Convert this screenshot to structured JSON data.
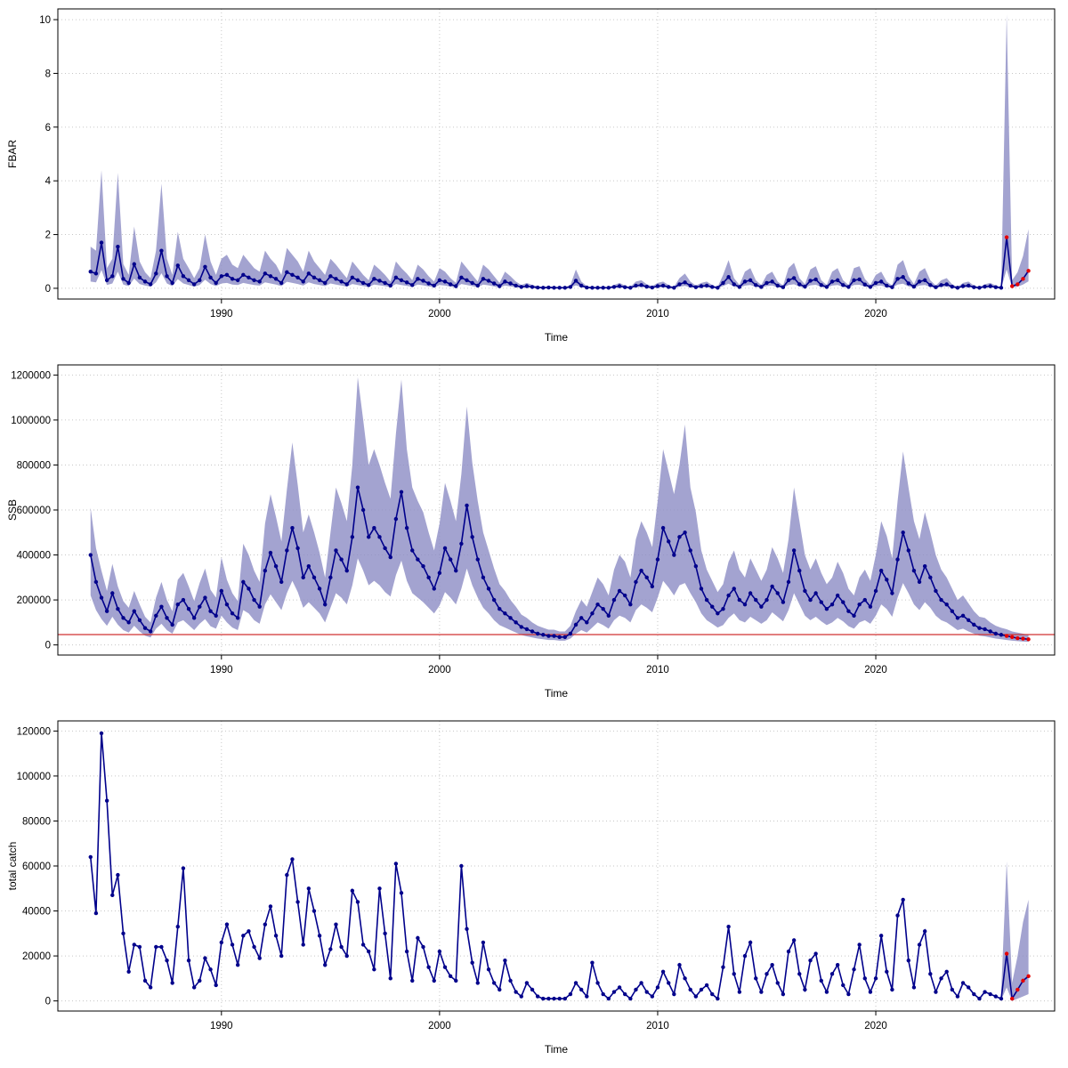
{
  "figure": {
    "background": "#ffffff",
    "x_label": "Time",
    "x_ticks": [
      1990,
      2000,
      2010,
      2020
    ],
    "x_range": [
      1982.5,
      2028.2
    ],
    "series_color": "#00008b",
    "band_color": "#8c8cc4",
    "band_opacity": 0.8,
    "grid_color": "#c6c6c6",
    "forecast_color": "#e60000",
    "reference_line_color": "#d03030"
  },
  "chart_data": [
    {
      "type": "line",
      "title": "",
      "ylabel": "FBAR",
      "xlabel": "Time",
      "x_start": 1984.0,
      "x_step": 0.25,
      "ylim": [
        -0.4,
        10.4
      ],
      "yticks": [
        0,
        2,
        4,
        6,
        8,
        10
      ],
      "n_forecast_points": 5,
      "values": [
        0.62,
        0.55,
        1.7,
        0.3,
        0.45,
        1.55,
        0.35,
        0.2,
        0.9,
        0.4,
        0.25,
        0.15,
        0.55,
        1.4,
        0.45,
        0.2,
        0.85,
        0.45,
        0.3,
        0.15,
        0.3,
        0.8,
        0.4,
        0.2,
        0.45,
        0.5,
        0.35,
        0.3,
        0.5,
        0.4,
        0.3,
        0.25,
        0.55,
        0.45,
        0.35,
        0.2,
        0.6,
        0.5,
        0.4,
        0.25,
        0.55,
        0.4,
        0.3,
        0.2,
        0.45,
        0.35,
        0.25,
        0.15,
        0.4,
        0.3,
        0.2,
        0.12,
        0.35,
        0.28,
        0.2,
        0.1,
        0.4,
        0.3,
        0.22,
        0.12,
        0.35,
        0.28,
        0.18,
        0.1,
        0.3,
        0.25,
        0.15,
        0.08,
        0.4,
        0.3,
        0.2,
        0.1,
        0.35,
        0.28,
        0.18,
        0.08,
        0.25,
        0.18,
        0.1,
        0.05,
        0.08,
        0.05,
        0.03,
        0.02,
        0.03,
        0.02,
        0.02,
        0.02,
        0.05,
        0.28,
        0.1,
        0.03,
        0.02,
        0.02,
        0.02,
        0.02,
        0.05,
        0.08,
        0.04,
        0.02,
        0.1,
        0.12,
        0.06,
        0.03,
        0.08,
        0.1,
        0.05,
        0.02,
        0.15,
        0.22,
        0.1,
        0.04,
        0.08,
        0.1,
        0.05,
        0.02,
        0.2,
        0.42,
        0.15,
        0.05,
        0.25,
        0.3,
        0.12,
        0.05,
        0.2,
        0.25,
        0.1,
        0.04,
        0.3,
        0.38,
        0.15,
        0.06,
        0.28,
        0.33,
        0.12,
        0.05,
        0.25,
        0.3,
        0.12,
        0.05,
        0.3,
        0.33,
        0.14,
        0.05,
        0.2,
        0.25,
        0.1,
        0.04,
        0.35,
        0.42,
        0.18,
        0.06,
        0.25,
        0.3,
        0.12,
        0.04,
        0.12,
        0.15,
        0.06,
        0.02,
        0.08,
        0.1,
        0.04,
        0.02,
        0.06,
        0.08,
        0.04,
        0.02,
        1.9,
        0.08,
        0.15,
        0.35,
        0.65
      ],
      "band_upper": [
        1.55,
        1.4,
        4.4,
        0.75,
        1.1,
        4.3,
        0.9,
        0.5,
        2.3,
        1.0,
        0.6,
        0.38,
        1.4,
        3.9,
        1.1,
        0.5,
        2.1,
        1.1,
        0.75,
        0.38,
        0.75,
        2.0,
        1.0,
        0.5,
        1.1,
        1.25,
        0.88,
        0.75,
        1.25,
        1.0,
        0.75,
        0.62,
        1.4,
        1.1,
        0.88,
        0.5,
        1.5,
        1.25,
        1.0,
        0.62,
        1.4,
        1.0,
        0.75,
        0.5,
        1.1,
        0.88,
        0.62,
        0.38,
        1.0,
        0.75,
        0.5,
        0.3,
        0.88,
        0.7,
        0.5,
        0.25,
        1.0,
        0.75,
        0.55,
        0.3,
        0.88,
        0.7,
        0.45,
        0.25,
        0.75,
        0.62,
        0.38,
        0.2,
        1.0,
        0.75,
        0.5,
        0.25,
        0.88,
        0.7,
        0.45,
        0.2,
        0.62,
        0.45,
        0.25,
        0.12,
        0.2,
        0.12,
        0.08,
        0.05,
        0.08,
        0.05,
        0.05,
        0.05,
        0.12,
        0.7,
        0.25,
        0.08,
        0.05,
        0.05,
        0.05,
        0.05,
        0.12,
        0.2,
        0.1,
        0.05,
        0.25,
        0.3,
        0.15,
        0.08,
        0.2,
        0.25,
        0.12,
        0.05,
        0.38,
        0.55,
        0.25,
        0.1,
        0.2,
        0.25,
        0.12,
        0.05,
        0.5,
        1.05,
        0.38,
        0.12,
        0.62,
        0.75,
        0.3,
        0.12,
        0.5,
        0.62,
        0.25,
        0.1,
        0.75,
        0.95,
        0.38,
        0.15,
        0.7,
        0.82,
        0.3,
        0.12,
        0.62,
        0.75,
        0.3,
        0.12,
        0.75,
        0.82,
        0.35,
        0.12,
        0.5,
        0.62,
        0.25,
        0.1,
        0.88,
        1.05,
        0.45,
        0.15,
        0.62,
        0.75,
        0.3,
        0.1,
        0.3,
        0.38,
        0.15,
        0.05,
        0.2,
        0.25,
        0.1,
        0.05,
        0.15,
        0.2,
        0.1,
        0.05,
        10.2,
        0.3,
        0.6,
        1.2,
        2.2
      ],
      "band_lower": [
        0.25,
        0.22,
        0.68,
        0.12,
        0.18,
        0.62,
        0.14,
        0.08,
        0.36,
        0.16,
        0.1,
        0.06,
        0.22,
        0.56,
        0.18,
        0.08,
        0.34,
        0.18,
        0.12,
        0.06,
        0.12,
        0.32,
        0.16,
        0.08,
        0.18,
        0.2,
        0.14,
        0.12,
        0.2,
        0.16,
        0.12,
        0.1,
        0.22,
        0.18,
        0.14,
        0.08,
        0.24,
        0.2,
        0.16,
        0.1,
        0.22,
        0.16,
        0.12,
        0.08,
        0.18,
        0.14,
        0.1,
        0.06,
        0.16,
        0.12,
        0.08,
        0.05,
        0.14,
        0.11,
        0.08,
        0.04,
        0.16,
        0.12,
        0.09,
        0.05,
        0.14,
        0.11,
        0.07,
        0.04,
        0.12,
        0.1,
        0.06,
        0.03,
        0.16,
        0.12,
        0.08,
        0.04,
        0.14,
        0.11,
        0.07,
        0.03,
        0.1,
        0.07,
        0.04,
        0.02,
        0.03,
        0.02,
        0.01,
        0.01,
        0.01,
        0.01,
        0.01,
        0.01,
        0.02,
        0.11,
        0.04,
        0.01,
        0.01,
        0.01,
        0.01,
        0.01,
        0.02,
        0.03,
        0.02,
        0.01,
        0.04,
        0.05,
        0.02,
        0.01,
        0.03,
        0.04,
        0.02,
        0.01,
        0.06,
        0.09,
        0.04,
        0.02,
        0.03,
        0.04,
        0.02,
        0.01,
        0.08,
        0.17,
        0.06,
        0.02,
        0.1,
        0.12,
        0.05,
        0.02,
        0.08,
        0.1,
        0.04,
        0.02,
        0.12,
        0.15,
        0.06,
        0.02,
        0.11,
        0.13,
        0.05,
        0.02,
        0.1,
        0.12,
        0.05,
        0.02,
        0.12,
        0.13,
        0.06,
        0.02,
        0.08,
        0.1,
        0.04,
        0.02,
        0.14,
        0.17,
        0.07,
        0.02,
        0.1,
        0.12,
        0.05,
        0.02,
        0.05,
        0.06,
        0.02,
        0.01,
        0.03,
        0.04,
        0.02,
        0.01,
        0.02,
        0.03,
        0.02,
        0.01,
        0.7,
        0.03,
        0.06,
        0.14,
        0.26
      ]
    },
    {
      "type": "line",
      "title": "",
      "ylabel": "SSB",
      "xlabel": "Time",
      "x_start": 1984.0,
      "x_step": 0.25,
      "ylim": [
        -45000,
        1245000
      ],
      "yticks": [
        0,
        200000,
        400000,
        600000,
        800000,
        1000000,
        1200000
      ],
      "n_forecast_points": 5,
      "reference_line_y": 46000,
      "values": [
        400000,
        280000,
        210000,
        150000,
        230000,
        160000,
        120000,
        100000,
        150000,
        110000,
        75000,
        60000,
        130000,
        170000,
        120000,
        90000,
        180000,
        200000,
        160000,
        120000,
        170000,
        210000,
        150000,
        130000,
        240000,
        180000,
        140000,
        120000,
        280000,
        250000,
        200000,
        170000,
        330000,
        410000,
        350000,
        280000,
        420000,
        520000,
        430000,
        300000,
        350000,
        300000,
        250000,
        180000,
        300000,
        420000,
        380000,
        330000,
        480000,
        700000,
        600000,
        480000,
        520000,
        480000,
        430000,
        390000,
        560000,
        680000,
        520000,
        420000,
        380000,
        350000,
        300000,
        250000,
        320000,
        430000,
        380000,
        330000,
        450000,
        620000,
        480000,
        380000,
        300000,
        250000,
        200000,
        160000,
        140000,
        120000,
        100000,
        80000,
        70000,
        60000,
        50000,
        45000,
        40000,
        40000,
        35000,
        35000,
        50000,
        90000,
        120000,
        100000,
        140000,
        180000,
        160000,
        130000,
        200000,
        240000,
        220000,
        180000,
        280000,
        330000,
        300000,
        260000,
        380000,
        520000,
        460000,
        400000,
        480000,
        500000,
        420000,
        350000,
        250000,
        200000,
        170000,
        140000,
        160000,
        220000,
        250000,
        200000,
        180000,
        230000,
        200000,
        170000,
        200000,
        260000,
        230000,
        190000,
        280000,
        420000,
        330000,
        240000,
        200000,
        230000,
        190000,
        160000,
        180000,
        220000,
        190000,
        150000,
        130000,
        180000,
        200000,
        170000,
        240000,
        330000,
        290000,
        230000,
        380000,
        500000,
        420000,
        330000,
        280000,
        350000,
        300000,
        240000,
        200000,
        180000,
        150000,
        120000,
        130000,
        110000,
        90000,
        75000,
        70000,
        60000,
        50000,
        45000,
        40000,
        35000,
        30000,
        28000,
        25000
      ],
      "band_upper": [
        610000,
        430000,
        330000,
        240000,
        360000,
        260000,
        195000,
        165000,
        240000,
        180000,
        125000,
        100000,
        210000,
        280000,
        200000,
        150000,
        290000,
        320000,
        260000,
        195000,
        275000,
        340000,
        245000,
        210000,
        390000,
        290000,
        230000,
        195000,
        450000,
        400000,
        330000,
        280000,
        540000,
        670000,
        570000,
        460000,
        690000,
        900000,
        710000,
        500000,
        580000,
        500000,
        410000,
        300000,
        500000,
        700000,
        630000,
        550000,
        800000,
        1190000,
        1000000,
        800000,
        870000,
        800000,
        720000,
        650000,
        940000,
        1180000,
        870000,
        700000,
        640000,
        590000,
        500000,
        420000,
        540000,
        720000,
        640000,
        550000,
        760000,
        1060000,
        810000,
        640000,
        500000,
        420000,
        340000,
        270000,
        240000,
        200000,
        170000,
        135000,
        120000,
        100000,
        85000,
        76000,
        68000,
        68000,
        60000,
        60000,
        85000,
        150000,
        200000,
        170000,
        235000,
        300000,
        270000,
        220000,
        335000,
        400000,
        370000,
        300000,
        470000,
        550000,
        500000,
        435000,
        640000,
        870000,
        770000,
        670000,
        800000,
        980000,
        700000,
        590000,
        420000,
        335000,
        285000,
        235000,
        270000,
        370000,
        420000,
        335000,
        300000,
        385000,
        335000,
        285000,
        335000,
        435000,
        385000,
        320000,
        470000,
        700000,
        550000,
        400000,
        335000,
        385000,
        320000,
        270000,
        300000,
        370000,
        320000,
        250000,
        220000,
        300000,
        335000,
        285000,
        400000,
        550000,
        485000,
        385000,
        640000,
        860000,
        700000,
        550000,
        470000,
        590000,
        500000,
        400000,
        335000,
        300000,
        250000,
        200000,
        220000,
        185000,
        150000,
        125000,
        120000,
        100000,
        85000,
        76000,
        70000,
        60000,
        55000,
        50000,
        45000
      ],
      "band_lower": [
        220000,
        155000,
        115000,
        85000,
        125000,
        90000,
        66000,
        55000,
        85000,
        60000,
        41000,
        33000,
        72000,
        94000,
        66000,
        50000,
        100000,
        110000,
        88000,
        66000,
        94000,
        115000,
        83000,
        72000,
        130000,
        100000,
        77000,
        66000,
        155000,
        140000,
        110000,
        94000,
        180000,
        225000,
        190000,
        155000,
        230000,
        285000,
        235000,
        165000,
        190000,
        165000,
        140000,
        100000,
        165000,
        230000,
        210000,
        180000,
        265000,
        385000,
        330000,
        265000,
        285000,
        265000,
        235000,
        215000,
        310000,
        375000,
        285000,
        230000,
        210000,
        190000,
        165000,
        140000,
        175000,
        235000,
        210000,
        180000,
        250000,
        340000,
        265000,
        210000,
        165000,
        140000,
        110000,
        88000,
        77000,
        66000,
        55000,
        44000,
        38000,
        33000,
        28000,
        25000,
        22000,
        22000,
        19000,
        19000,
        28000,
        50000,
        66000,
        55000,
        77000,
        100000,
        88000,
        72000,
        110000,
        130000,
        120000,
        100000,
        155000,
        180000,
        165000,
        145000,
        210000,
        285000,
        255000,
        220000,
        265000,
        275000,
        230000,
        190000,
        140000,
        110000,
        94000,
        77000,
        88000,
        120000,
        140000,
        110000,
        100000,
        125000,
        110000,
        94000,
        110000,
        145000,
        125000,
        105000,
        155000,
        230000,
        180000,
        130000,
        110000,
        125000,
        105000,
        88000,
        100000,
        120000,
        105000,
        83000,
        72000,
        100000,
        110000,
        94000,
        130000,
        180000,
        160000,
        125000,
        210000,
        275000,
        230000,
        180000,
        155000,
        190000,
        165000,
        130000,
        110000,
        100000,
        83000,
        66000,
        72000,
        60000,
        50000,
        41000,
        38000,
        33000,
        28000,
        25000,
        22000,
        19000,
        17000,
        15000,
        14000
      ]
    },
    {
      "type": "line",
      "title": "",
      "ylabel": "total catch",
      "xlabel": "Time",
      "x_start": 1984.0,
      "x_step": 0.25,
      "ylim": [
        -4500,
        124500
      ],
      "yticks": [
        0,
        20000,
        40000,
        60000,
        80000,
        100000,
        120000
      ],
      "n_forecast_points": 5,
      "values": [
        64000,
        39000,
        119000,
        89000,
        47000,
        56000,
        30000,
        13000,
        25000,
        24000,
        9000,
        6000,
        24000,
        24000,
        18000,
        8000,
        33000,
        59000,
        18000,
        6000,
        9000,
        19000,
        14000,
        7000,
        26000,
        34000,
        25000,
        16000,
        29000,
        31000,
        24000,
        19000,
        34000,
        42000,
        29000,
        20000,
        56000,
        63000,
        44000,
        25000,
        50000,
        40000,
        29000,
        16000,
        23000,
        34000,
        24000,
        20000,
        49000,
        44000,
        25000,
        22000,
        14000,
        50000,
        30000,
        10000,
        61000,
        48000,
        22000,
        9000,
        28000,
        24000,
        15000,
        9000,
        22000,
        15000,
        11000,
        9000,
        60000,
        32000,
        17000,
        8000,
        26000,
        14000,
        8000,
        5000,
        18000,
        9000,
        4000,
        2000,
        8000,
        5000,
        2000,
        1000,
        1000,
        1000,
        1000,
        1000,
        3000,
        8000,
        5000,
        2000,
        17000,
        8000,
        3000,
        1000,
        4000,
        6000,
        3000,
        1000,
        5000,
        8000,
        4000,
        2000,
        6000,
        13000,
        8000,
        3000,
        16000,
        10000,
        5000,
        2000,
        5000,
        7000,
        3000,
        1000,
        15000,
        33000,
        12000,
        4000,
        20000,
        26000,
        10000,
        4000,
        12000,
        16000,
        8000,
        3000,
        22000,
        27000,
        12000,
        5000,
        18000,
        21000,
        9000,
        4000,
        12000,
        16000,
        7000,
        3000,
        14000,
        25000,
        10000,
        4000,
        10000,
        29000,
        13000,
        5000,
        38000,
        45000,
        18000,
        6000,
        25000,
        31000,
        12000,
        4000,
        10000,
        13000,
        5000,
        2000,
        8000,
        6000,
        3000,
        1000,
        4000,
        3000,
        2000,
        1000,
        21000,
        1000,
        5000,
        9000,
        11000
      ],
      "forecast_band": {
        "x": [
          2025.75,
          2026.0,
          2026.25,
          2026.5,
          2026.75,
          2027.0
        ],
        "upper": [
          4000,
          62000,
          8000,
          20000,
          35000,
          45000
        ],
        "lower": [
          500,
          6000,
          0,
          1000,
          2000,
          3000
        ]
      }
    }
  ]
}
